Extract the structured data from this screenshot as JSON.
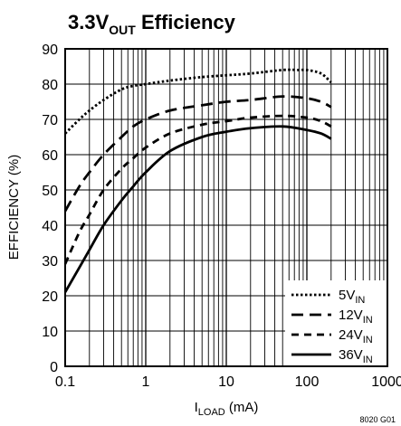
{
  "chart_data": {
    "type": "line",
    "title": {
      "main": "3.3V",
      "sub": "OUT",
      "rest": " Efficiency"
    },
    "xlabel": {
      "main": "I",
      "sub": "LOAD",
      "rest": " (mA)"
    },
    "ylabel": "EFFICIENCY (%)",
    "x_scale": "log",
    "xlim": [
      0.1,
      1000
    ],
    "ylim": [
      0,
      90
    ],
    "x_ticks": [
      0.1,
      1,
      10,
      100,
      1000
    ],
    "x_tick_labels": [
      "0.1",
      "1",
      "10",
      "100",
      "1000"
    ],
    "y_ticks": [
      0,
      10,
      20,
      30,
      40,
      50,
      60,
      70,
      80,
      90
    ],
    "y_tick_labels": [
      "0",
      "10",
      "20",
      "30",
      "40",
      "50",
      "60",
      "70",
      "80",
      "90"
    ],
    "grid": true,
    "legend_position": "bottom-right",
    "series": [
      {
        "name": "5V",
        "name_sub": "IN",
        "line_style": "dotted",
        "x": [
          0.1,
          0.15,
          0.2,
          0.3,
          0.5,
          0.7,
          1,
          2,
          5,
          10,
          20,
          50,
          80,
          100,
          150,
          200
        ],
        "y": [
          66,
          70,
          72.5,
          75.5,
          78.5,
          79.5,
          80,
          81,
          82,
          82.5,
          83,
          84,
          84,
          84,
          83,
          80.5
        ]
      },
      {
        "name": "12V",
        "name_sub": "IN",
        "line_style": "long-dash",
        "x": [
          0.1,
          0.15,
          0.2,
          0.3,
          0.5,
          0.7,
          1,
          2,
          5,
          10,
          20,
          50,
          100,
          150,
          200
        ],
        "y": [
          44,
          51,
          55,
          60,
          65,
          68,
          70,
          72.5,
          74,
          75,
          75.5,
          76.5,
          76,
          75,
          73.5
        ]
      },
      {
        "name": "24V",
        "name_sub": "IN",
        "line_style": "short-dash",
        "x": [
          0.1,
          0.15,
          0.2,
          0.3,
          0.5,
          0.7,
          1,
          2,
          5,
          10,
          20,
          50,
          100,
          150,
          200
        ],
        "y": [
          29,
          38,
          43,
          50,
          56,
          59,
          62,
          66,
          68.5,
          69.5,
          70.5,
          71,
          70.5,
          69.5,
          68
        ]
      },
      {
        "name": "36V",
        "name_sub": "IN",
        "line_style": "solid",
        "x": [
          0.1,
          0.15,
          0.2,
          0.3,
          0.5,
          0.7,
          1,
          2,
          5,
          10,
          20,
          50,
          100,
          150,
          200
        ],
        "y": [
          21,
          28,
          33,
          40,
          47,
          51,
          55,
          61,
          65,
          66.5,
          67.5,
          68,
          67,
          66,
          64.5
        ]
      }
    ]
  },
  "figure_id": "8020 G01"
}
